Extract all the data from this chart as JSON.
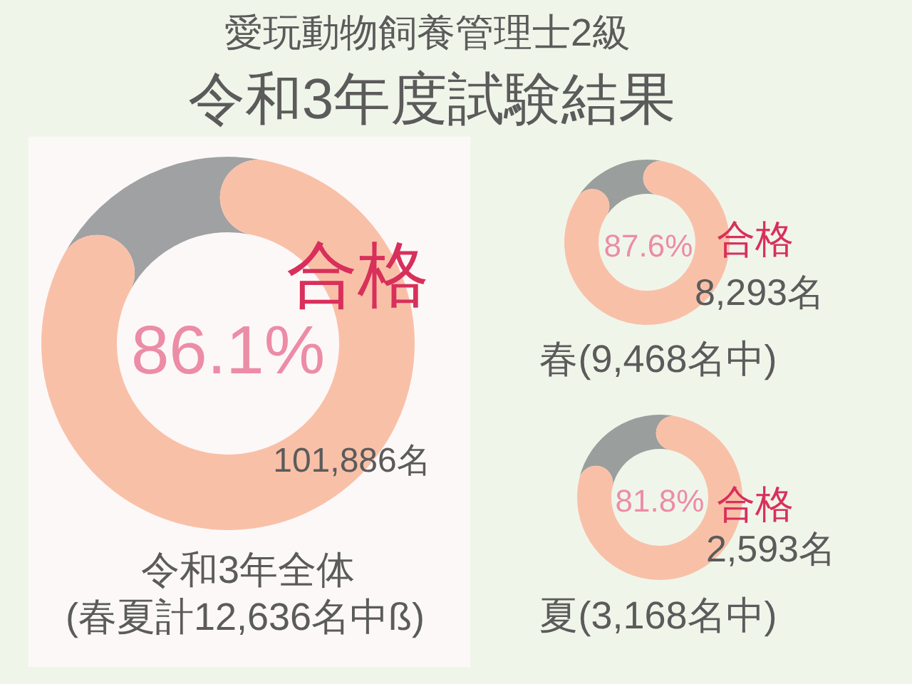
{
  "chart_data": [
    {
      "type": "donut",
      "title": "令和3年度試験結果",
      "subtitle": "愛玩動物飼養管理士2級",
      "categories": [
        "合格",
        null
      ],
      "values": [
        86.1,
        13.9
      ],
      "colors": [
        "#f9c0a8",
        "#9fa1a3"
      ],
      "value_labels": [
        "86.1%",
        null
      ],
      "annotations": [
        "101,886名",
        "令和3年全体",
        "(春夏計12,636名中ß)"
      ]
    },
    {
      "type": "donut",
      "categories": [
        "合格",
        null
      ],
      "values": [
        87.6,
        12.4
      ],
      "colors": [
        "#f9c0a8",
        "#9a9e9c"
      ],
      "value_labels": [
        "87.6%",
        null
      ],
      "annotations": [
        "8,293名",
        "春(9,468名中)"
      ]
    },
    {
      "type": "donut",
      "categories": [
        "合格",
        null
      ],
      "values": [
        81.8,
        18.2
      ],
      "colors": [
        "#f9c0a8",
        "#9a9e9c"
      ],
      "value_labels": [
        "81.8%",
        null
      ],
      "annotations": [
        "2,593名",
        "夏(3,168名中)"
      ]
    }
  ]
}
